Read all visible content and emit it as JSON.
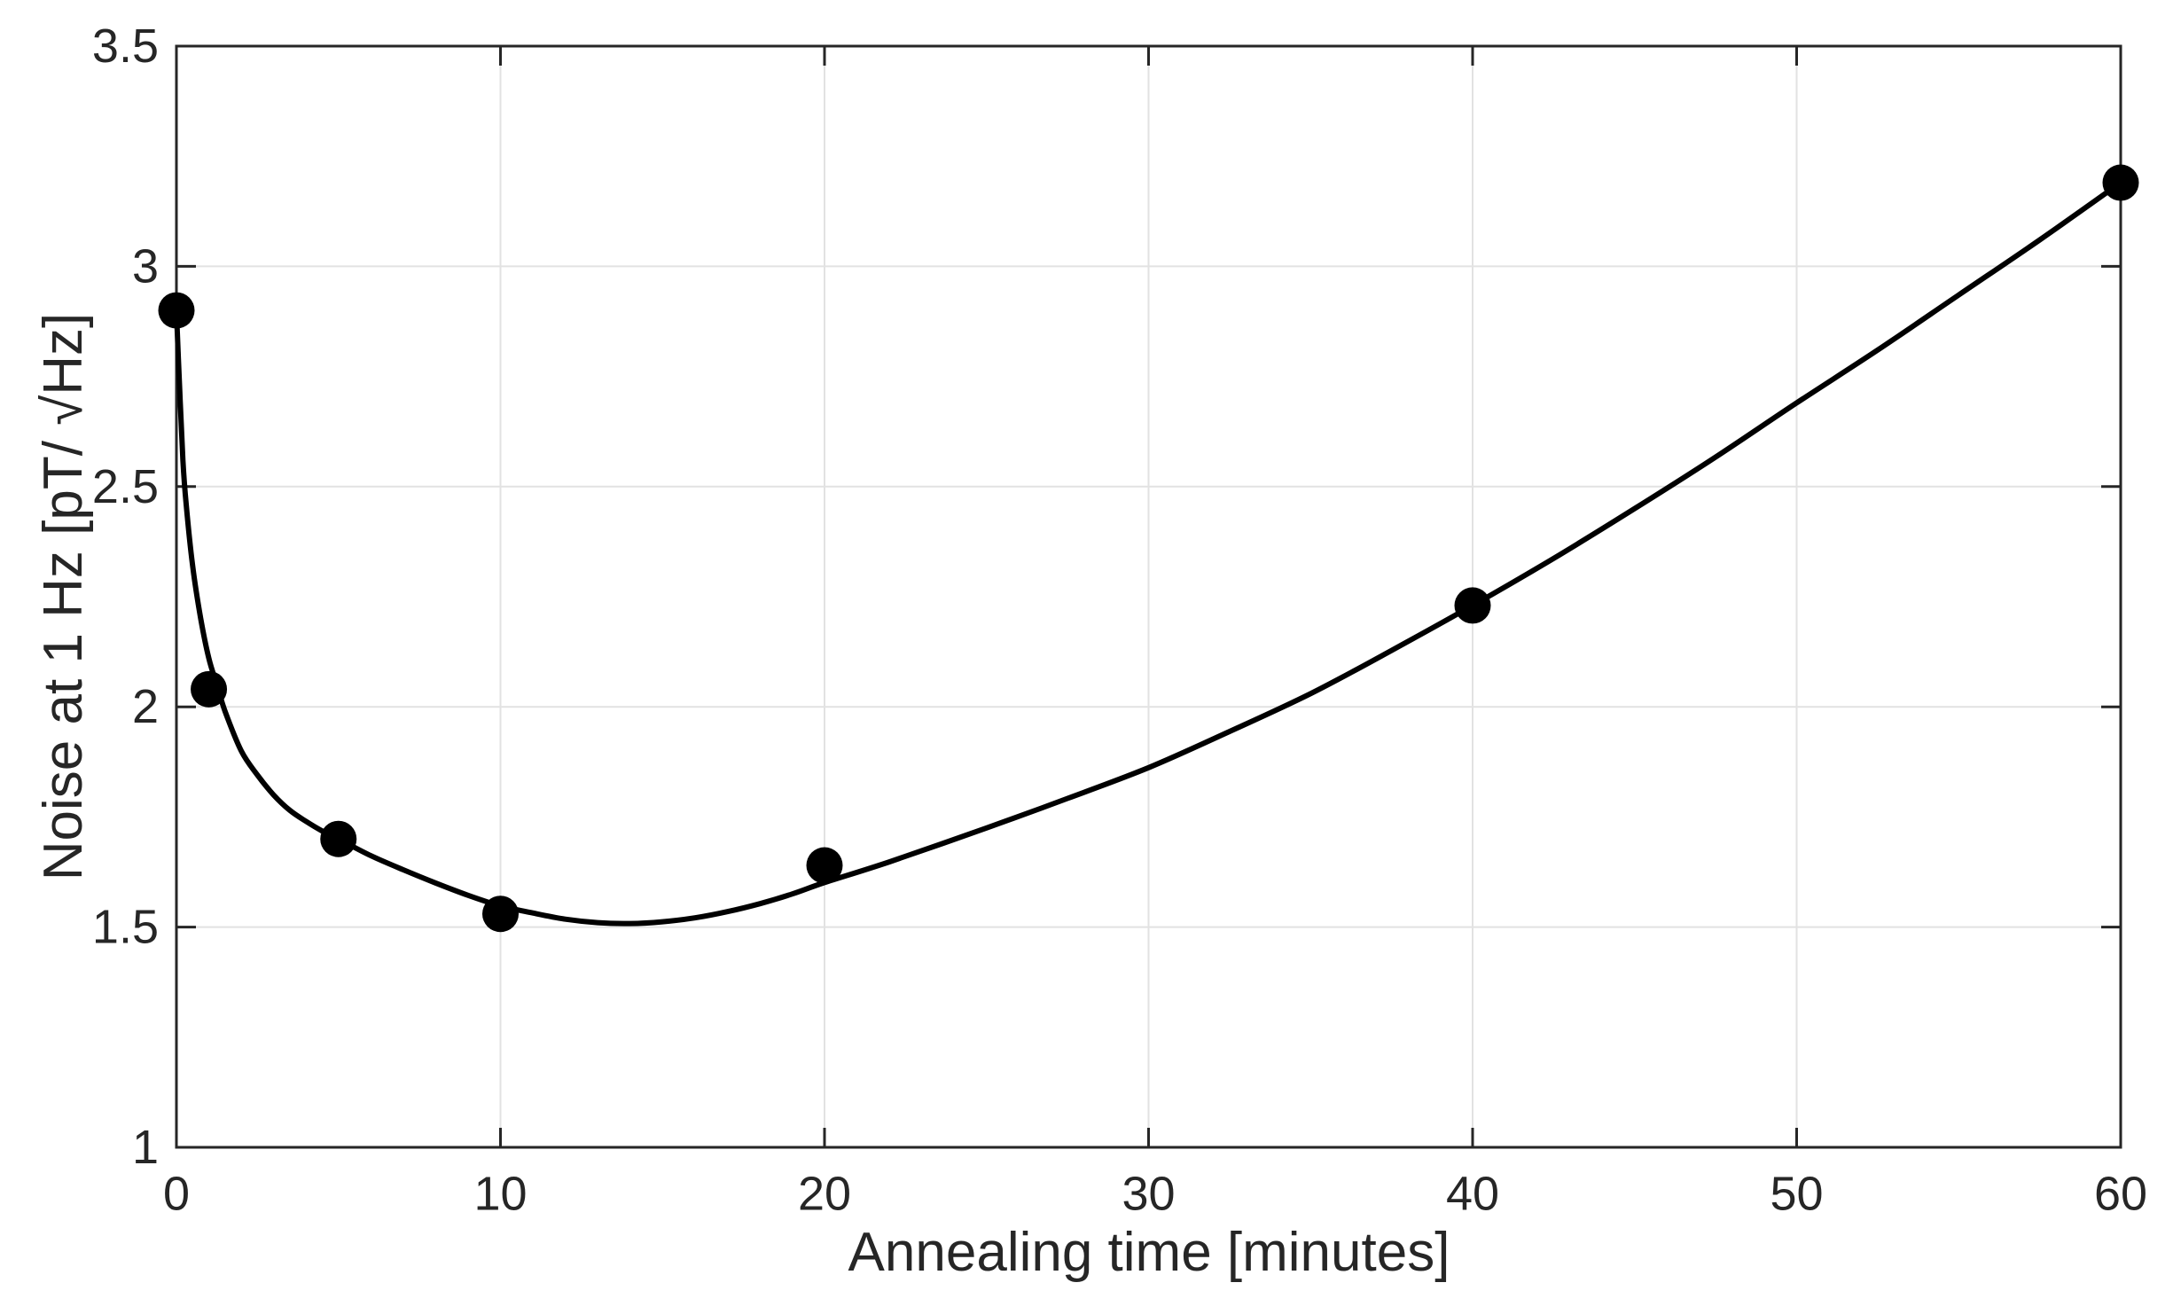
{
  "chart_data": {
    "type": "scatter",
    "title": "",
    "xlabel": "Annealing time [minutes]",
    "ylabel": "Noise at 1 Hz [pT/ √Hz]",
    "xlim": [
      0,
      60
    ],
    "ylim": [
      1,
      3.5
    ],
    "xticks": [
      0,
      10,
      20,
      30,
      40,
      50,
      60
    ],
    "xtick_labels": [
      "0",
      "10",
      "20",
      "30",
      "40",
      "50",
      "60"
    ],
    "yticks": [
      1,
      1.5,
      2,
      2.5,
      3,
      3.5
    ],
    "ytick_labels": [
      "1",
      "1.5",
      "2",
      "2.5",
      "3",
      "3.5"
    ],
    "grid": true,
    "legend": false,
    "marker": "filled-circle",
    "scatter_points": [
      [
        0,
        2.9
      ],
      [
        1,
        2.04
      ],
      [
        5,
        1.7
      ],
      [
        10,
        1.53
      ],
      [
        20,
        1.64
      ],
      [
        40,
        2.23
      ],
      [
        60,
        3.19
      ]
    ],
    "fit_curve": [
      [
        0,
        2.9
      ],
      [
        0.1,
        2.72
      ],
      [
        0.2,
        2.56
      ],
      [
        0.3,
        2.46
      ],
      [
        0.5,
        2.32
      ],
      [
        0.75,
        2.2
      ],
      [
        1,
        2.11
      ],
      [
        1.25,
        2.05
      ],
      [
        1.5,
        1.99
      ],
      [
        2,
        1.9
      ],
      [
        2.5,
        1.845
      ],
      [
        3,
        1.8
      ],
      [
        3.5,
        1.765
      ],
      [
        4,
        1.74
      ],
      [
        4.5,
        1.718
      ],
      [
        5,
        1.7
      ],
      [
        6,
        1.662
      ],
      [
        7,
        1.63
      ],
      [
        8,
        1.6
      ],
      [
        9,
        1.572
      ],
      [
        10,
        1.548
      ],
      [
        11,
        1.532
      ],
      [
        12,
        1.518
      ],
      [
        13,
        1.51
      ],
      [
        14,
        1.508
      ],
      [
        15,
        1.512
      ],
      [
        16,
        1.521
      ],
      [
        17,
        1.535
      ],
      [
        18,
        1.553
      ],
      [
        19,
        1.575
      ],
      [
        20,
        1.601
      ],
      [
        22,
        1.648
      ],
      [
        25,
        1.725
      ],
      [
        27.5,
        1.792
      ],
      [
        30,
        1.862
      ],
      [
        32.5,
        1.944
      ],
      [
        35,
        2.03
      ],
      [
        37.5,
        2.128
      ],
      [
        40,
        2.23
      ],
      [
        42.5,
        2.337
      ],
      [
        45,
        2.45
      ],
      [
        47.5,
        2.567
      ],
      [
        50,
        2.69
      ],
      [
        52.5,
        2.81
      ],
      [
        55,
        2.935
      ],
      [
        57.5,
        3.06
      ],
      [
        60,
        3.19
      ]
    ],
    "colors": {
      "background": "#ffffff",
      "axis": "#262626",
      "tick_text": "#262626",
      "grid": "#e2e2e2",
      "curve": "#000000",
      "marker": "#000000"
    }
  }
}
